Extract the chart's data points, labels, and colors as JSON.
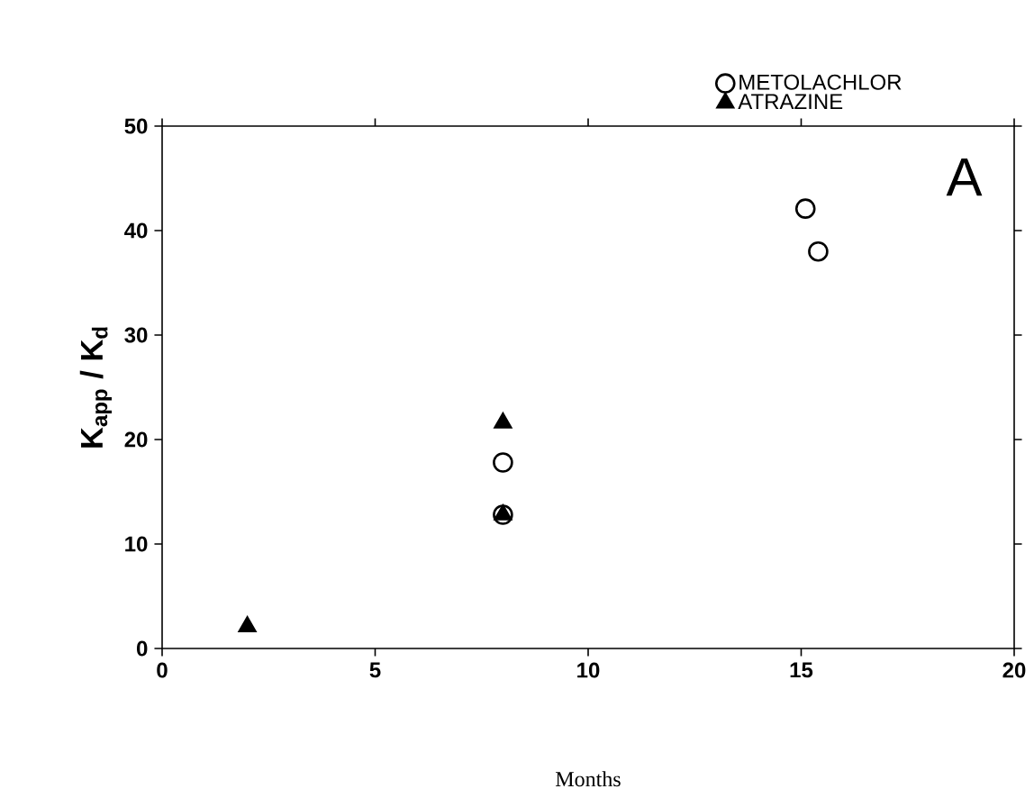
{
  "chart_data": {
    "type": "scatter",
    "xlabel": "Months",
    "ylabel": "K$_{app}$ / K$_{d}$",
    "annotations": [
      "A"
    ],
    "xlim": [
      0,
      20
    ],
    "ylim": [
      0,
      50
    ],
    "xticks": [
      0,
      5,
      10,
      15,
      20
    ],
    "yticks": [
      0,
      10,
      20,
      30,
      40,
      50
    ],
    "grid": false,
    "legend": "top right",
    "series": [
      {
        "name": "METOLACHLOR",
        "color": "#000000",
        "marker": "circle",
        "x": [
          8,
          8,
          15.1,
          15.4
        ],
        "values": [
          17.8,
          12.8,
          42.1,
          38.0
        ]
      },
      {
        "name": "ATRAZINE",
        "color": "#000000",
        "marker": "triangle",
        "x": [
          2,
          8,
          8
        ],
        "values": [
          2.1,
          21.6,
          12.8
        ]
      }
    ]
  }
}
